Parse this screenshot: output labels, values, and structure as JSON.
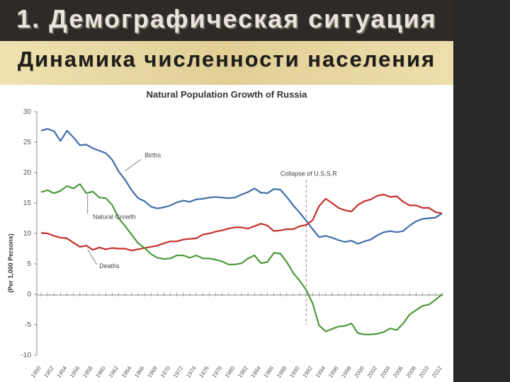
{
  "slide": {
    "title": "1. Демографическая ситуация",
    "subtitle": "Динамика численности населения"
  },
  "colors": {
    "background": "#2b2927",
    "subtitle_band": "#eadba6",
    "births": "#3f6ea8",
    "deaths": "#c4302b",
    "natural_growth": "#4c9a3a",
    "collapse_line": "#888888"
  },
  "chart_data": {
    "type": "line",
    "title": "Natural Population Growth of Russia",
    "ylabel": "(Per 1,000 Persons)",
    "xlabel": "",
    "ylim": [
      -10,
      30
    ],
    "yticks": [
      30,
      25,
      20,
      15,
      10,
      5,
      0,
      -5,
      -10
    ],
    "xlim": [
      1950,
      2012
    ],
    "xticks": [
      1950,
      1952,
      1954,
      1956,
      1958,
      1960,
      1962,
      1964,
      1966,
      1968,
      1970,
      1972,
      1974,
      1976,
      1978,
      1980,
      1982,
      1984,
      1986,
      1988,
      1990,
      1992,
      1994,
      1996,
      1998,
      2000,
      2002,
      2004,
      2006,
      2008,
      2010,
      2012
    ],
    "grid": "none",
    "legend": "none",
    "series": [
      {
        "name": "Births",
        "points": [
          [
            1950,
            26.9
          ],
          [
            1951,
            27.2
          ],
          [
            1952,
            26.8
          ],
          [
            1953,
            25.2
          ],
          [
            1954,
            26.9
          ],
          [
            1955,
            25.8
          ],
          [
            1956,
            24.5
          ],
          [
            1957,
            24.6
          ],
          [
            1958,
            24.0
          ],
          [
            1959,
            23.6
          ],
          [
            1960,
            23.2
          ],
          [
            1961,
            22.1
          ],
          [
            1962,
            20.2
          ],
          [
            1963,
            18.8
          ],
          [
            1964,
            17.1
          ],
          [
            1965,
            15.8
          ],
          [
            1966,
            15.3
          ],
          [
            1967,
            14.4
          ],
          [
            1968,
            14.1
          ],
          [
            1969,
            14.3
          ],
          [
            1970,
            14.6
          ],
          [
            1971,
            15.1
          ],
          [
            1972,
            15.4
          ],
          [
            1973,
            15.2
          ],
          [
            1974,
            15.6
          ],
          [
            1975,
            15.7
          ],
          [
            1976,
            15.9
          ],
          [
            1977,
            16.0
          ],
          [
            1978,
            15.9
          ],
          [
            1979,
            15.8
          ],
          [
            1980,
            15.9
          ],
          [
            1981,
            16.4
          ],
          [
            1982,
            16.8
          ],
          [
            1983,
            17.4
          ],
          [
            1984,
            16.7
          ],
          [
            1985,
            16.6
          ],
          [
            1986,
            17.3
          ],
          [
            1987,
            17.2
          ],
          [
            1988,
            16.0
          ],
          [
            1989,
            14.6
          ],
          [
            1990,
            13.4
          ],
          [
            1991,
            12.1
          ],
          [
            1992,
            10.7
          ],
          [
            1993,
            9.4
          ],
          [
            1994,
            9.6
          ],
          [
            1995,
            9.3
          ],
          [
            1996,
            8.9
          ],
          [
            1997,
            8.6
          ],
          [
            1998,
            8.8
          ],
          [
            1999,
            8.3
          ],
          [
            2000,
            8.7
          ],
          [
            2001,
            9.0
          ],
          [
            2002,
            9.7
          ],
          [
            2003,
            10.2
          ],
          [
            2004,
            10.4
          ],
          [
            2005,
            10.2
          ],
          [
            2006,
            10.4
          ],
          [
            2007,
            11.3
          ],
          [
            2008,
            12.0
          ],
          [
            2009,
            12.4
          ],
          [
            2010,
            12.5
          ],
          [
            2011,
            12.6
          ],
          [
            2012,
            13.3
          ]
        ]
      },
      {
        "name": "Deaths",
        "points": [
          [
            1950,
            10.1
          ],
          [
            1951,
            10.0
          ],
          [
            1952,
            9.6
          ],
          [
            1953,
            9.3
          ],
          [
            1954,
            9.2
          ],
          [
            1955,
            8.5
          ],
          [
            1956,
            7.8
          ],
          [
            1957,
            8.0
          ],
          [
            1958,
            7.3
          ],
          [
            1959,
            7.7
          ],
          [
            1960,
            7.4
          ],
          [
            1961,
            7.6
          ],
          [
            1962,
            7.5
          ],
          [
            1963,
            7.5
          ],
          [
            1964,
            7.2
          ],
          [
            1965,
            7.4
          ],
          [
            1966,
            7.6
          ],
          [
            1967,
            7.8
          ],
          [
            1968,
            8.0
          ],
          [
            1969,
            8.4
          ],
          [
            1970,
            8.7
          ],
          [
            1971,
            8.7
          ],
          [
            1972,
            9.0
          ],
          [
            1973,
            9.1
          ],
          [
            1974,
            9.2
          ],
          [
            1975,
            9.8
          ],
          [
            1976,
            10.0
          ],
          [
            1977,
            10.3
          ],
          [
            1978,
            10.5
          ],
          [
            1979,
            10.8
          ],
          [
            1980,
            11.0
          ],
          [
            1981,
            11.0
          ],
          [
            1982,
            10.8
          ],
          [
            1983,
            11.2
          ],
          [
            1984,
            11.6
          ],
          [
            1985,
            11.3
          ],
          [
            1986,
            10.4
          ],
          [
            1987,
            10.5
          ],
          [
            1988,
            10.7
          ],
          [
            1989,
            10.7
          ],
          [
            1990,
            11.2
          ],
          [
            1991,
            11.4
          ],
          [
            1992,
            12.2
          ],
          [
            1993,
            14.5
          ],
          [
            1994,
            15.7
          ],
          [
            1995,
            15.0
          ],
          [
            1996,
            14.2
          ],
          [
            1997,
            13.8
          ],
          [
            1998,
            13.6
          ],
          [
            1999,
            14.7
          ],
          [
            2000,
            15.3
          ],
          [
            2001,
            15.6
          ],
          [
            2002,
            16.2
          ],
          [
            2003,
            16.4
          ],
          [
            2004,
            16.0
          ],
          [
            2005,
            16.1
          ],
          [
            2006,
            15.2
          ],
          [
            2007,
            14.6
          ],
          [
            2008,
            14.6
          ],
          [
            2009,
            14.2
          ],
          [
            2010,
            14.2
          ],
          [
            2011,
            13.5
          ],
          [
            2012,
            13.3
          ]
        ]
      },
      {
        "name": "Natural Growth",
        "points": [
          [
            1950,
            16.8
          ],
          [
            1951,
            17.1
          ],
          [
            1952,
            16.6
          ],
          [
            1953,
            17.0
          ],
          [
            1954,
            17.8
          ],
          [
            1955,
            17.4
          ],
          [
            1956,
            18.1
          ],
          [
            1957,
            16.6
          ],
          [
            1958,
            16.9
          ],
          [
            1959,
            15.9
          ],
          [
            1960,
            15.8
          ],
          [
            1961,
            14.7
          ],
          [
            1962,
            12.5
          ],
          [
            1963,
            11.2
          ],
          [
            1964,
            9.8
          ],
          [
            1965,
            8.4
          ],
          [
            1966,
            7.6
          ],
          [
            1967,
            6.6
          ],
          [
            1968,
            6.0
          ],
          [
            1969,
            5.8
          ],
          [
            1970,
            5.9
          ],
          [
            1971,
            6.4
          ],
          [
            1972,
            6.4
          ],
          [
            1973,
            6.0
          ],
          [
            1974,
            6.4
          ],
          [
            1975,
            5.9
          ],
          [
            1976,
            5.9
          ],
          [
            1977,
            5.7
          ],
          [
            1978,
            5.4
          ],
          [
            1979,
            4.9
          ],
          [
            1980,
            4.9
          ],
          [
            1981,
            5.1
          ],
          [
            1982,
            5.9
          ],
          [
            1983,
            6.4
          ],
          [
            1984,
            5.1
          ],
          [
            1985,
            5.3
          ],
          [
            1986,
            6.8
          ],
          [
            1987,
            6.7
          ],
          [
            1988,
            5.3
          ],
          [
            1989,
            3.5
          ],
          [
            1990,
            2.2
          ],
          [
            1991,
            0.7
          ],
          [
            1992,
            -1.5
          ],
          [
            1993,
            -5.1
          ],
          [
            1994,
            -6.1
          ],
          [
            1995,
            -5.7
          ],
          [
            1996,
            -5.3
          ],
          [
            1997,
            -5.2
          ],
          [
            1998,
            -4.8
          ],
          [
            1999,
            -6.4
          ],
          [
            2000,
            -6.6
          ],
          [
            2001,
            -6.6
          ],
          [
            2002,
            -6.5
          ],
          [
            2003,
            -6.2
          ],
          [
            2004,
            -5.6
          ],
          [
            2005,
            -5.9
          ],
          [
            2006,
            -4.8
          ],
          [
            2007,
            -3.3
          ],
          [
            2008,
            -2.6
          ],
          [
            2009,
            -1.9
          ],
          [
            2010,
            -1.7
          ],
          [
            2011,
            -0.9
          ],
          [
            2012,
            0.0
          ]
        ]
      }
    ],
    "annotations": [
      {
        "text": "Births",
        "x": 1966,
        "y": 22.5
      },
      {
        "text": "Natural Growth",
        "x": 1958,
        "y": 12.4
      },
      {
        "text": "Deaths",
        "x": 1959,
        "y": 4.3
      },
      {
        "text": "Collapse of U.S.S.R",
        "x": 1987,
        "y": 19.5
      }
    ],
    "collapse_year": 1991
  }
}
